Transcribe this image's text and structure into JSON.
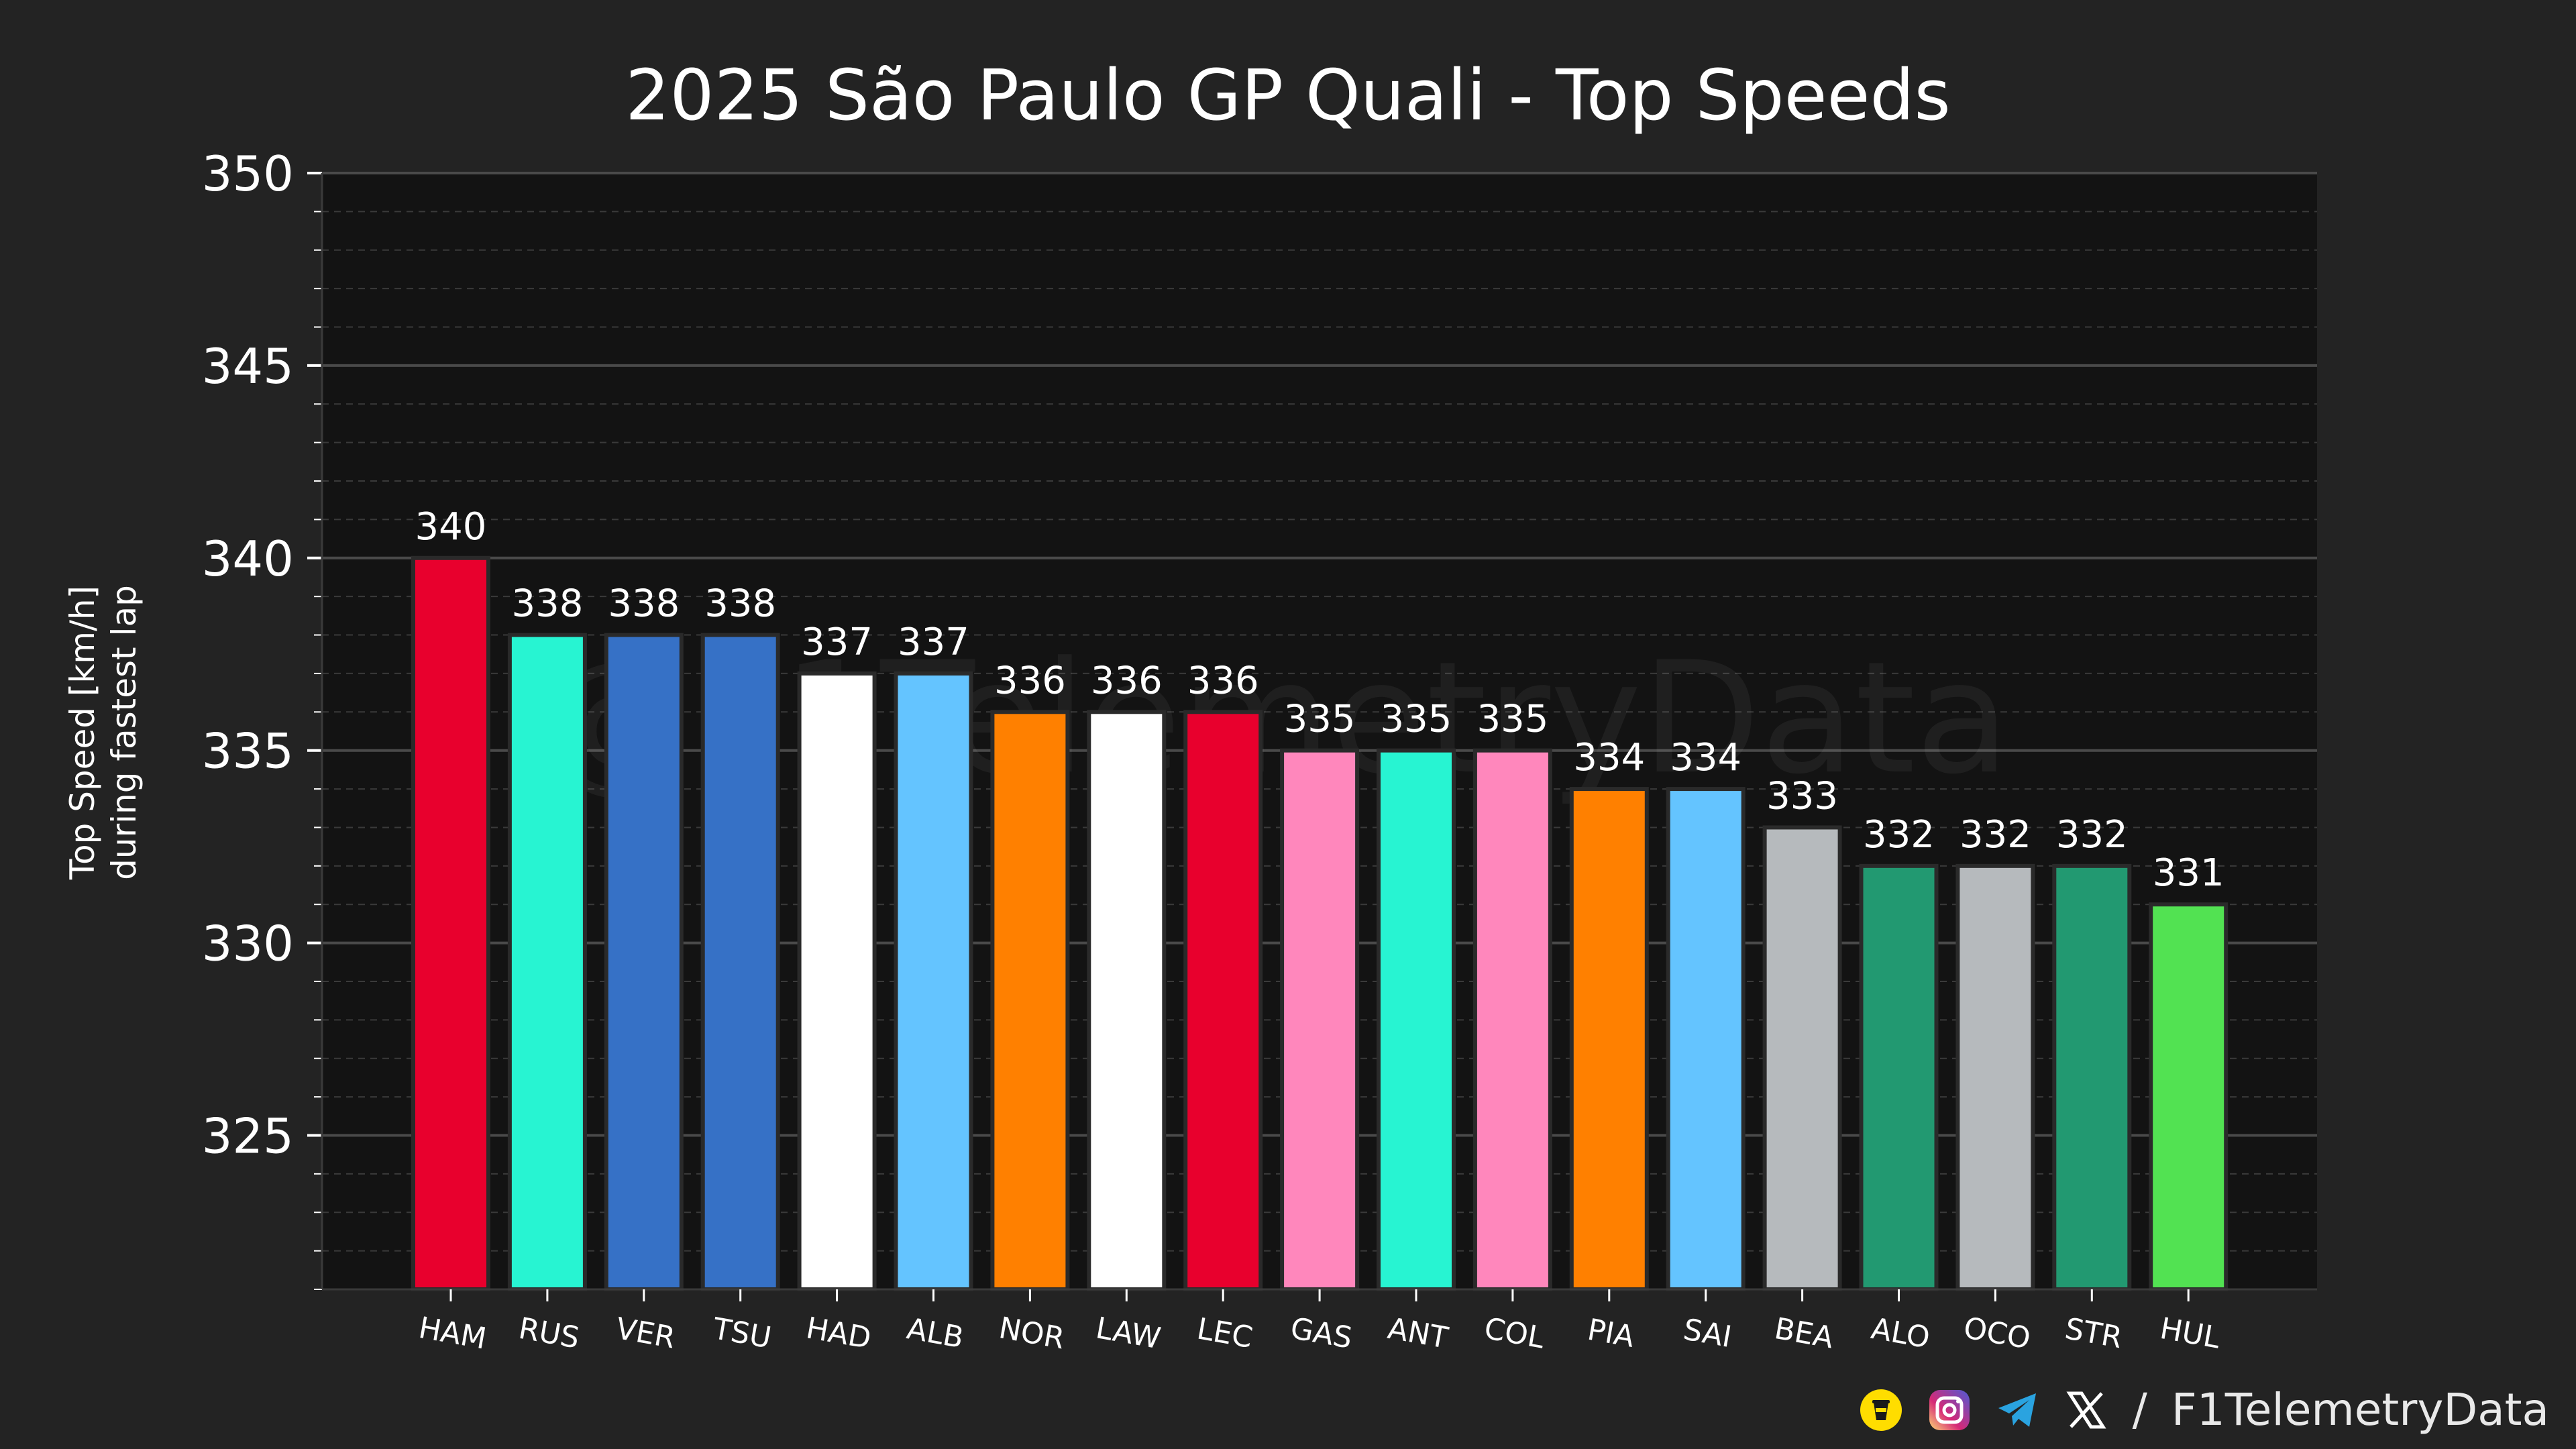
{
  "watermark": "@F1TelemetryData",
  "footer": {
    "sep": "/",
    "handle": "F1TelemetryData"
  },
  "colors": {
    "background": "#232323",
    "plot_bg": "#131313",
    "grid": "#3a3a3a"
  },
  "chart_data": {
    "type": "bar",
    "title": "2025 São Paulo GP Quali - Top Speeds",
    "xlabel": "",
    "ylabel": "Top Speed [km/h]",
    "ylabel2": "during fastest lap",
    "ylim": [
      321,
      350
    ],
    "yticks": [
      325,
      330,
      335,
      340,
      345,
      350
    ],
    "categories": [
      "HAM",
      "RUS",
      "VER",
      "TSU",
      "HAD",
      "ALB",
      "NOR",
      "LAW",
      "LEC",
      "GAS",
      "ANT",
      "COL",
      "PIA",
      "SAI",
      "BEA",
      "ALO",
      "OCO",
      "STR",
      "HUL"
    ],
    "values": [
      340,
      338,
      338,
      338,
      337,
      337,
      336,
      336,
      336,
      335,
      335,
      335,
      334,
      334,
      333,
      332,
      332,
      332,
      331
    ],
    "bar_colors": [
      "#e8002d",
      "#27f4d2",
      "#3671c6",
      "#3671c6",
      "#ffffff",
      "#64c4ff",
      "#ff8000",
      "#ffffff",
      "#e8002d",
      "#ff87bc",
      "#27f4d2",
      "#ff87bc",
      "#ff8000",
      "#64c4ff",
      "#b6babd",
      "#229971",
      "#b6babd",
      "#229971",
      "#52e252"
    ],
    "grid": true
  }
}
